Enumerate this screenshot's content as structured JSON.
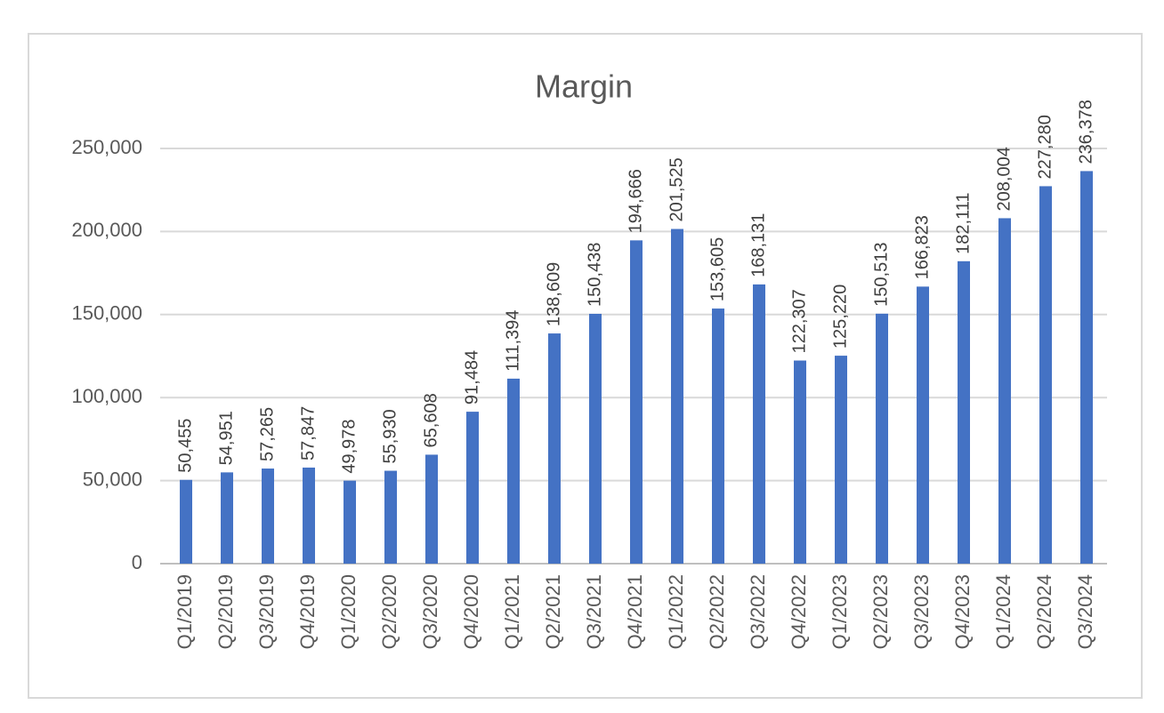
{
  "chart_data": {
    "type": "bar",
    "title": "Margin",
    "categories": [
      "Q1/2019",
      "Q2/2019",
      "Q3/2019",
      "Q4/2019",
      "Q1/2020",
      "Q2/2020",
      "Q3/2020",
      "Q4/2020",
      "Q1/2021",
      "Q2/2021",
      "Q3/2021",
      "Q4/2021",
      "Q1/2022",
      "Q2/2022",
      "Q3/2022",
      "Q4/2022",
      "Q1/2023",
      "Q2/2023",
      "Q3/2023",
      "Q4/2023",
      "Q1/2024",
      "Q2/2024",
      "Q3/2024"
    ],
    "values": [
      50455,
      54951,
      57265,
      57847,
      49978,
      55930,
      65608,
      91484,
      111394,
      138609,
      150438,
      194666,
      201525,
      153605,
      168131,
      122307,
      125220,
      150513,
      166823,
      182111,
      208004,
      227280,
      236378
    ],
    "value_labels": [
      "50,455",
      "54,951",
      "57,265",
      "57,847",
      "49,978",
      "55,930",
      "65,608",
      "91,484",
      "111,394",
      "138,609",
      "150,438",
      "194,666",
      "201,525",
      "153,605",
      "168,131",
      "122,307",
      "125,220",
      "150,513",
      "166,823",
      "182,111",
      "208,004",
      "227,280",
      "236,378"
    ],
    "color": "#4472c4",
    "ylim": [
      0,
      250000
    ],
    "yticks": [
      0,
      {
        "value": 50000,
        "label": "50,000"
      },
      {
        "value": 100000,
        "label": "100,000"
      },
      {
        "value": 150000,
        "label": "150,000"
      },
      {
        "value": 200000,
        "label": "200,000"
      },
      {
        "value": 250000,
        "label": "250,000"
      }
    ],
    "grid": true
  }
}
